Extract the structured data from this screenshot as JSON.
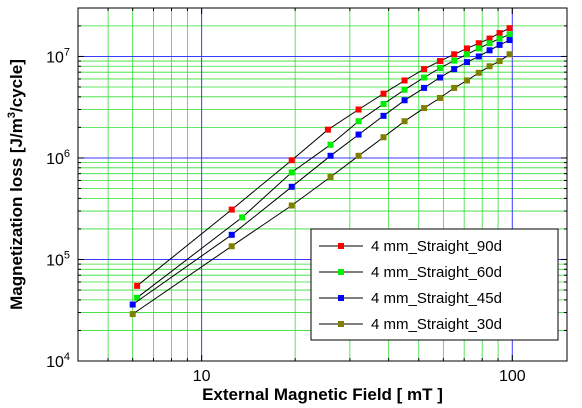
{
  "chart_data": {
    "type": "line",
    "xscale": "log",
    "yscale": "log",
    "xlim": [
      4,
      150
    ],
    "ylim": [
      10000,
      30000000
    ],
    "xlabel": "External Magnetic Field [ mT ]",
    "ylabel": "Magnetization loss [J/m3/cycle]",
    "ylabel_parts": {
      "pre": "Magnetization loss [J/m",
      "sup": "3",
      "post": "/cycle]"
    },
    "x_major_ticks": [
      10,
      100
    ],
    "x_tick_labels": [
      "10",
      "100"
    ],
    "y_major_ticks": [
      10000,
      100000,
      1000000,
      10000000
    ],
    "y_tick_labels": [
      {
        "base": "10",
        "exp": "4"
      },
      {
        "base": "10",
        "exp": "5"
      },
      {
        "base": "10",
        "exp": "6"
      },
      {
        "base": "10",
        "exp": "7"
      }
    ],
    "grid": true,
    "legend_position": "bottom-right",
    "series": [
      {
        "name": "4 mm_Straight_90d",
        "color": "#ff0000",
        "x": [
          6.2,
          12.5,
          19.5,
          25.5,
          32,
          38.5,
          45,
          52,
          58.5,
          65,
          71.5,
          78,
          84.5,
          91,
          98
        ],
        "y": [
          55000,
          310000,
          950000,
          1900000,
          3000000,
          4300000,
          5800000,
          7500000,
          9000000,
          10500000,
          12000000,
          13500000,
          15000000,
          17000000,
          19000000
        ]
      },
      {
        "name": "4 mm_Straight_60d",
        "color": "#00ee00",
        "x": [
          6.2,
          13.5,
          19.5,
          26,
          32,
          38.5,
          45,
          52,
          58.5,
          65,
          71.5,
          78,
          84.5,
          91,
          98
        ],
        "y": [
          42000,
          260000,
          720000,
          1350000,
          2300000,
          3400000,
          4700000,
          6200000,
          7700000,
          9100000,
          10500000,
          12000000,
          13500000,
          15000000,
          16500000
        ]
      },
      {
        "name": "4 mm_Straight_45d",
        "color": "#0000ff",
        "x": [
          6,
          12.5,
          19.5,
          26,
          32,
          38.5,
          45,
          52,
          58.5,
          65,
          71.5,
          78,
          84.5,
          91,
          98
        ],
        "y": [
          36000,
          175000,
          520000,
          1050000,
          1700000,
          2600000,
          3700000,
          4900000,
          6200000,
          7500000,
          8800000,
          10000000,
          11500000,
          13000000,
          14500000
        ]
      },
      {
        "name": "4 mm_Straight_30d",
        "color": "#808000",
        "x": [
          6,
          12.5,
          19.5,
          26,
          32,
          38.5,
          45,
          52,
          58.5,
          65,
          71.5,
          78,
          84.5,
          91,
          98
        ],
        "y": [
          29000,
          135000,
          340000,
          650000,
          1050000,
          1600000,
          2300000,
          3100000,
          3900000,
          4900000,
          5800000,
          6900000,
          8000000,
          9000000,
          10500000
        ]
      }
    ]
  }
}
